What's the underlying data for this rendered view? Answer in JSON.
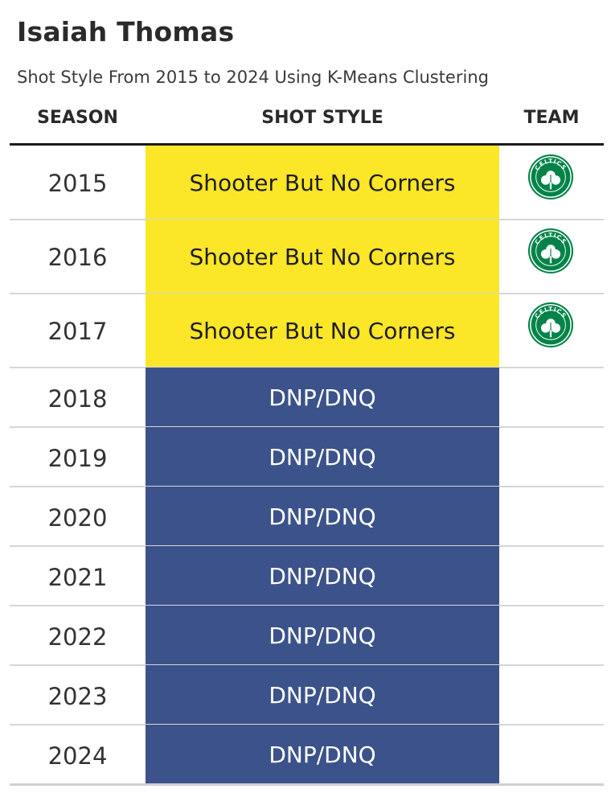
{
  "title": "Isaiah Thomas",
  "subtitle": "Shot Style From 2015 to 2024 Using K-Means Clustering",
  "headers": {
    "season": "SEASON",
    "style": "SHOT STYLE",
    "team": "TEAM"
  },
  "colors": {
    "shooter": "#fbe628",
    "dnp": "#3c528a",
    "celtics_green": "#008348"
  },
  "chart_data": {
    "type": "table",
    "columns": [
      "SEASON",
      "SHOT STYLE",
      "TEAM"
    ],
    "rows": [
      {
        "season": "2015",
        "style": "Shooter But No Corners",
        "team_logo": "celtics-logo-icon",
        "logo_text": "CELTICS"
      },
      {
        "season": "2016",
        "style": "Shooter But No Corners",
        "team_logo": "celtics-logo-icon",
        "logo_text": "CELTICS"
      },
      {
        "season": "2017",
        "style": "Shooter But No Corners",
        "team_logo": "celtics-logo-icon",
        "logo_text": "CELTICS"
      },
      {
        "season": "2018",
        "style": "DNP/DNQ",
        "team_logo": ""
      },
      {
        "season": "2019",
        "style": "DNP/DNQ",
        "team_logo": ""
      },
      {
        "season": "2020",
        "style": "DNP/DNQ",
        "team_logo": ""
      },
      {
        "season": "2021",
        "style": "DNP/DNQ",
        "team_logo": ""
      },
      {
        "season": "2022",
        "style": "DNP/DNQ",
        "team_logo": ""
      },
      {
        "season": "2023",
        "style": "DNP/DNQ",
        "team_logo": ""
      },
      {
        "season": "2024",
        "style": "DNP/DNQ",
        "team_logo": ""
      }
    ]
  }
}
